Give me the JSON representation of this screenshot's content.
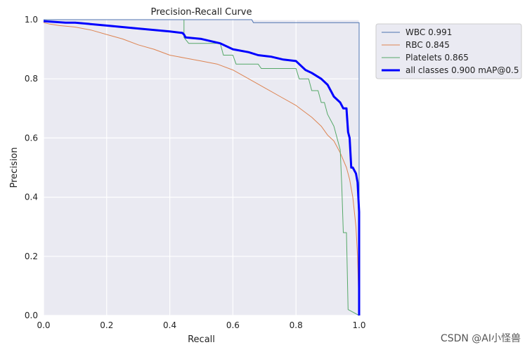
{
  "chart_data": {
    "type": "line",
    "title": "Precision-Recall Curve",
    "xlabel": "Recall",
    "ylabel": "Precision",
    "xlim": [
      0,
      1
    ],
    "ylim": [
      0,
      1
    ],
    "xticks": [
      "0.0",
      "0.2",
      "0.4",
      "0.6",
      "0.8",
      "1.0"
    ],
    "yticks": [
      "0.0",
      "0.2",
      "0.4",
      "0.6",
      "0.8",
      "1.0"
    ],
    "grid": true,
    "legend_position": "outside-top-right",
    "series": [
      {
        "name": "WBC 0.991",
        "color": "#4c72b0",
        "width": 1,
        "x": [
          0.0,
          0.66,
          0.665,
          1.0,
          1.0
        ],
        "y": [
          1.0,
          1.0,
          0.99,
          0.99,
          0.0
        ]
      },
      {
        "name": "RBC 0.845",
        "color": "#dd8452",
        "width": 1,
        "x": [
          0.0,
          0.02,
          0.05,
          0.1,
          0.15,
          0.2,
          0.25,
          0.3,
          0.35,
          0.4,
          0.45,
          0.5,
          0.55,
          0.6,
          0.65,
          0.7,
          0.75,
          0.8,
          0.85,
          0.88,
          0.9,
          0.92,
          0.94,
          0.96,
          0.97,
          0.98,
          0.99,
          0.995,
          1.0
        ],
        "y": [
          0.99,
          0.985,
          0.98,
          0.975,
          0.965,
          0.95,
          0.935,
          0.915,
          0.9,
          0.88,
          0.87,
          0.86,
          0.85,
          0.83,
          0.8,
          0.77,
          0.74,
          0.71,
          0.67,
          0.64,
          0.61,
          0.59,
          0.55,
          0.5,
          0.46,
          0.4,
          0.3,
          0.2,
          0.0
        ]
      },
      {
        "name": "Platelets 0.865",
        "color": "#55a868",
        "width": 1,
        "x": [
          0.445,
          0.445,
          0.46,
          0.56,
          0.57,
          0.6,
          0.61,
          0.68,
          0.69,
          0.8,
          0.81,
          0.84,
          0.85,
          0.87,
          0.88,
          0.89,
          0.9,
          0.91,
          0.92,
          0.93,
          0.94,
          0.945,
          0.95,
          0.96,
          0.965,
          0.965,
          1.0,
          1.0
        ],
        "y": [
          1.0,
          0.94,
          0.92,
          0.92,
          0.88,
          0.88,
          0.85,
          0.85,
          0.835,
          0.835,
          0.8,
          0.8,
          0.76,
          0.76,
          0.72,
          0.72,
          0.68,
          0.66,
          0.64,
          0.6,
          0.56,
          0.44,
          0.28,
          0.28,
          0.02,
          0.02,
          0.0,
          0.0
        ]
      },
      {
        "name": "all classes 0.900 mAP@0.5",
        "color": "#0000ff",
        "width": 3,
        "x": [
          0.0,
          0.07,
          0.1,
          0.2,
          0.3,
          0.4,
          0.44,
          0.445,
          0.45,
          0.5,
          0.56,
          0.6,
          0.65,
          0.68,
          0.72,
          0.76,
          0.8,
          0.81,
          0.83,
          0.85,
          0.88,
          0.9,
          0.91,
          0.92,
          0.94,
          0.95,
          0.96,
          0.965,
          0.97,
          0.975,
          0.98,
          0.99,
          0.995,
          1.0,
          1.0
        ],
        "y": [
          0.995,
          0.99,
          0.99,
          0.98,
          0.97,
          0.96,
          0.955,
          0.95,
          0.94,
          0.935,
          0.92,
          0.9,
          0.89,
          0.88,
          0.875,
          0.865,
          0.86,
          0.85,
          0.83,
          0.82,
          0.8,
          0.78,
          0.76,
          0.74,
          0.72,
          0.7,
          0.7,
          0.62,
          0.6,
          0.5,
          0.5,
          0.48,
          0.45,
          0.35,
          0.0
        ]
      }
    ]
  },
  "watermark": "CSDN @AI小怪兽"
}
